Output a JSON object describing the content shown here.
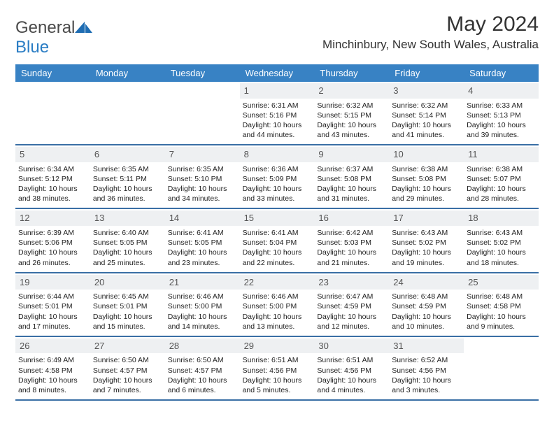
{
  "logo": {
    "textA": "General",
    "textB": "Blue"
  },
  "title": "May 2024",
  "location": "Minchinbury, New South Wales, Australia",
  "header_bg": "#3882c4",
  "days": [
    "Sunday",
    "Monday",
    "Tuesday",
    "Wednesday",
    "Thursday",
    "Friday",
    "Saturday"
  ],
  "weeks": [
    [
      null,
      null,
      null,
      {
        "n": "1",
        "sr": "6:31 AM",
        "ss": "5:16 PM",
        "dh": "10",
        "dm": "44"
      },
      {
        "n": "2",
        "sr": "6:32 AM",
        "ss": "5:15 PM",
        "dh": "10",
        "dm": "43"
      },
      {
        "n": "3",
        "sr": "6:32 AM",
        "ss": "5:14 PM",
        "dh": "10",
        "dm": "41"
      },
      {
        "n": "4",
        "sr": "6:33 AM",
        "ss": "5:13 PM",
        "dh": "10",
        "dm": "39"
      }
    ],
    [
      {
        "n": "5",
        "sr": "6:34 AM",
        "ss": "5:12 PM",
        "dh": "10",
        "dm": "38"
      },
      {
        "n": "6",
        "sr": "6:35 AM",
        "ss": "5:11 PM",
        "dh": "10",
        "dm": "36"
      },
      {
        "n": "7",
        "sr": "6:35 AM",
        "ss": "5:10 PM",
        "dh": "10",
        "dm": "34"
      },
      {
        "n": "8",
        "sr": "6:36 AM",
        "ss": "5:09 PM",
        "dh": "10",
        "dm": "33"
      },
      {
        "n": "9",
        "sr": "6:37 AM",
        "ss": "5:08 PM",
        "dh": "10",
        "dm": "31"
      },
      {
        "n": "10",
        "sr": "6:38 AM",
        "ss": "5:08 PM",
        "dh": "10",
        "dm": "29"
      },
      {
        "n": "11",
        "sr": "6:38 AM",
        "ss": "5:07 PM",
        "dh": "10",
        "dm": "28"
      }
    ],
    [
      {
        "n": "12",
        "sr": "6:39 AM",
        "ss": "5:06 PM",
        "dh": "10",
        "dm": "26"
      },
      {
        "n": "13",
        "sr": "6:40 AM",
        "ss": "5:05 PM",
        "dh": "10",
        "dm": "25"
      },
      {
        "n": "14",
        "sr": "6:41 AM",
        "ss": "5:05 PM",
        "dh": "10",
        "dm": "23"
      },
      {
        "n": "15",
        "sr": "6:41 AM",
        "ss": "5:04 PM",
        "dh": "10",
        "dm": "22"
      },
      {
        "n": "16",
        "sr": "6:42 AM",
        "ss": "5:03 PM",
        "dh": "10",
        "dm": "21"
      },
      {
        "n": "17",
        "sr": "6:43 AM",
        "ss": "5:02 PM",
        "dh": "10",
        "dm": "19"
      },
      {
        "n": "18",
        "sr": "6:43 AM",
        "ss": "5:02 PM",
        "dh": "10",
        "dm": "18"
      }
    ],
    [
      {
        "n": "19",
        "sr": "6:44 AM",
        "ss": "5:01 PM",
        "dh": "10",
        "dm": "17"
      },
      {
        "n": "20",
        "sr": "6:45 AM",
        "ss": "5:01 PM",
        "dh": "10",
        "dm": "15"
      },
      {
        "n": "21",
        "sr": "6:46 AM",
        "ss": "5:00 PM",
        "dh": "10",
        "dm": "14"
      },
      {
        "n": "22",
        "sr": "6:46 AM",
        "ss": "5:00 PM",
        "dh": "10",
        "dm": "13"
      },
      {
        "n": "23",
        "sr": "6:47 AM",
        "ss": "4:59 PM",
        "dh": "10",
        "dm": "12"
      },
      {
        "n": "24",
        "sr": "6:48 AM",
        "ss": "4:59 PM",
        "dh": "10",
        "dm": "10"
      },
      {
        "n": "25",
        "sr": "6:48 AM",
        "ss": "4:58 PM",
        "dh": "10",
        "dm": "9"
      }
    ],
    [
      {
        "n": "26",
        "sr": "6:49 AM",
        "ss": "4:58 PM",
        "dh": "10",
        "dm": "8"
      },
      {
        "n": "27",
        "sr": "6:50 AM",
        "ss": "4:57 PM",
        "dh": "10",
        "dm": "7"
      },
      {
        "n": "28",
        "sr": "6:50 AM",
        "ss": "4:57 PM",
        "dh": "10",
        "dm": "6"
      },
      {
        "n": "29",
        "sr": "6:51 AM",
        "ss": "4:56 PM",
        "dh": "10",
        "dm": "5"
      },
      {
        "n": "30",
        "sr": "6:51 AM",
        "ss": "4:56 PM",
        "dh": "10",
        "dm": "4"
      },
      {
        "n": "31",
        "sr": "6:52 AM",
        "ss": "4:56 PM",
        "dh": "10",
        "dm": "3"
      },
      null
    ]
  ],
  "labels": {
    "sunrise": "Sunrise:",
    "sunset": "Sunset:",
    "daylightA": "Daylight:",
    "hours": "hours",
    "and": "and",
    "minutes": "minutes."
  }
}
